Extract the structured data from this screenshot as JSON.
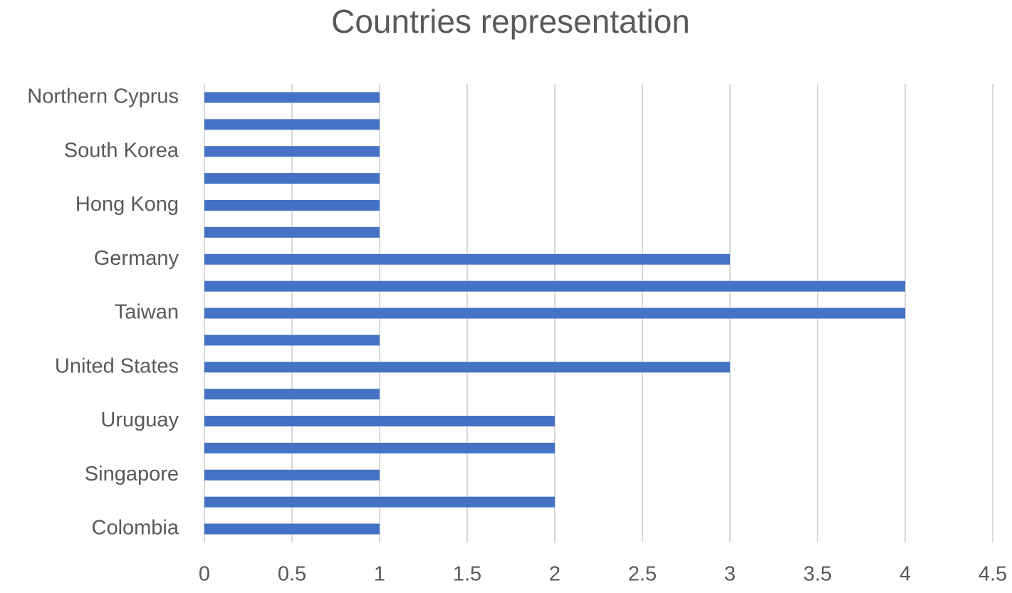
{
  "chart_data": {
    "type": "bar",
    "orientation": "horizontal",
    "title": "Countries representation",
    "categories": [
      "Colombia",
      null,
      "Singapore",
      null,
      "Uruguay",
      null,
      "United States",
      null,
      "Taiwan",
      null,
      "Germany",
      null,
      "Hong Kong",
      null,
      "South Korea",
      null,
      "Northern Cyprus"
    ],
    "values": [
      1,
      2,
      1,
      2,
      2,
      1,
      3,
      1,
      4,
      4,
      3,
      1,
      1,
      1,
      1,
      1,
      1
    ],
    "color": "#4472c4",
    "xlim": [
      0,
      4.5
    ],
    "xticks": [
      0,
      0.5,
      1,
      1.5,
      2,
      2.5,
      3,
      3.5,
      4,
      4.5
    ],
    "grid": true
  }
}
